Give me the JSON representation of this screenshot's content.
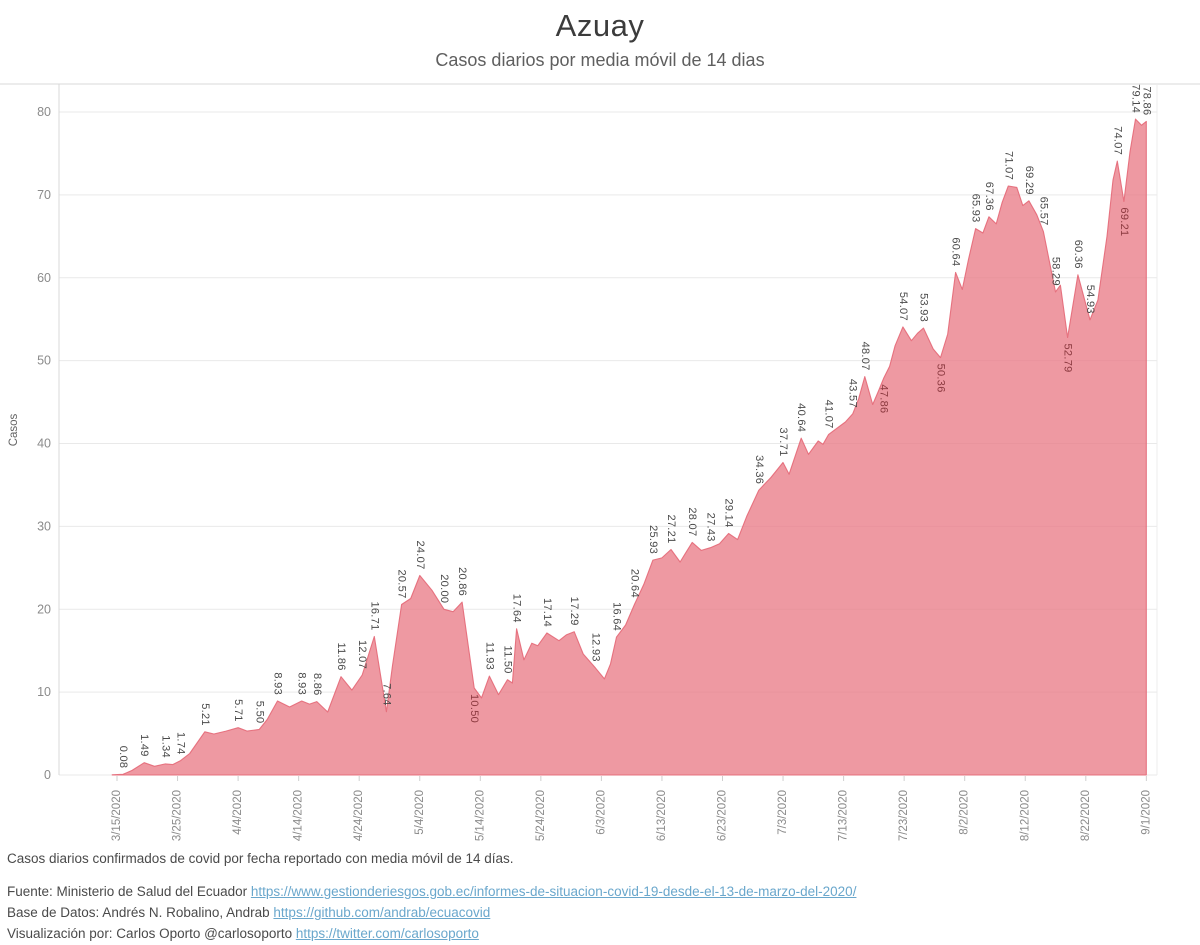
{
  "header": {
    "title": "Azuay",
    "subtitle": "Casos diarios por media móvil de 14 dias"
  },
  "chart_data": {
    "type": "area",
    "title": "Azuay",
    "subtitle": "Casos diarios por media móvil de 14 dias",
    "ylabel": "Casos",
    "xlabel": "",
    "ylim": [
      0,
      83.3
    ],
    "y_ticks": [
      0,
      10,
      20,
      30,
      40,
      50,
      60,
      70,
      80
    ],
    "x_tick_dates": [
      "3/15/2020",
      "3/25/2020",
      "4/4/2020",
      "4/14/2020",
      "4/24/2020",
      "5/4/2020",
      "5/14/2020",
      "5/24/2020",
      "6/3/2020",
      "6/13/2020",
      "6/23/2020",
      "7/3/2020",
      "7/13/2020",
      "7/23/2020",
      "8/2/2020",
      "8/12/2020",
      "8/22/2020",
      "9/1/2020"
    ],
    "x_tick_days": [
      0,
      10,
      20,
      30,
      40,
      50,
      60,
      70,
      80,
      90,
      100,
      110,
      120,
      130,
      140,
      150,
      160,
      170
    ],
    "grid": true,
    "legend": "none",
    "series_name": "Casos diarios por media móvil de 14 dias",
    "points": [
      [
        -0.8,
        0.03
      ],
      [
        1,
        0.08,
        "0.08"
      ],
      [
        2.5,
        0.55
      ],
      [
        4.5,
        1.49,
        "1.49"
      ],
      [
        6.2,
        1.05
      ],
      [
        8,
        1.34,
        "1.34"
      ],
      [
        9.2,
        1.25
      ],
      [
        10.5,
        1.74,
        "1.74"
      ],
      [
        12,
        2.6
      ],
      [
        14.5,
        5.21,
        "5.21"
      ],
      [
        16,
        4.95
      ],
      [
        18,
        5.3
      ],
      [
        20,
        5.71,
        "5.71"
      ],
      [
        21.5,
        5.3
      ],
      [
        23.5,
        5.5,
        "5.50"
      ],
      [
        24.8,
        6.7
      ],
      [
        26.5,
        8.93,
        "8.93"
      ],
      [
        28.5,
        8.2
      ],
      [
        30.5,
        8.93,
        "8.93"
      ],
      [
        31.8,
        8.55
      ],
      [
        33,
        8.86,
        "8.86"
      ],
      [
        34.8,
        7.6
      ],
      [
        37,
        11.86,
        "11.86"
      ],
      [
        38.8,
        10.25
      ],
      [
        40.5,
        12.07,
        "12.07"
      ],
      [
        42.5,
        16.71,
        "16.71"
      ],
      [
        44.5,
        7.64,
        "7.64"
      ],
      [
        45.5,
        13.2
      ],
      [
        47,
        20.57,
        "20.57"
      ],
      [
        48.5,
        21.3
      ],
      [
        50,
        24.07,
        "24.07"
      ],
      [
        52,
        22.3
      ],
      [
        54,
        20.0,
        "20.00"
      ],
      [
        55.5,
        19.7
      ],
      [
        57,
        20.86,
        "20.86"
      ],
      [
        59,
        10.5,
        "10.50",
        1
      ],
      [
        60.2,
        9.3
      ],
      [
        61.5,
        11.93,
        "11.93"
      ],
      [
        63,
        9.7
      ],
      [
        64.5,
        11.5,
        "11.50"
      ],
      [
        65.3,
        11.1
      ],
      [
        66,
        17.64,
        "17.64"
      ],
      [
        67.2,
        13.9
      ],
      [
        68.5,
        15.9
      ],
      [
        69.5,
        15.6
      ],
      [
        71,
        17.14,
        "17.14"
      ],
      [
        73,
        16.2
      ],
      [
        74.2,
        16.9
      ],
      [
        75.5,
        17.29,
        "17.29"
      ],
      [
        77,
        14.6
      ],
      [
        79,
        12.93,
        "12.93"
      ],
      [
        80.5,
        11.6
      ],
      [
        81.5,
        13.4
      ],
      [
        82.5,
        16.64,
        "16.64"
      ],
      [
        84,
        18.1
      ],
      [
        85.5,
        20.64,
        "20.64"
      ],
      [
        87,
        23.0
      ],
      [
        88.5,
        25.93,
        "25.93"
      ],
      [
        90,
        26.2
      ],
      [
        91.5,
        27.21,
        "27.21"
      ],
      [
        93,
        25.7
      ],
      [
        94,
        26.9
      ],
      [
        95,
        28.07,
        "28.07"
      ],
      [
        96.5,
        27.1
      ],
      [
        98,
        27.43,
        "27.43"
      ],
      [
        99.5,
        27.9
      ],
      [
        101,
        29.14,
        "29.14"
      ],
      [
        102.5,
        28.4
      ],
      [
        104,
        31.2
      ],
      [
        106,
        34.36,
        "34.36"
      ],
      [
        108,
        35.9
      ],
      [
        110,
        37.71,
        "37.71"
      ],
      [
        111,
        36.3
      ],
      [
        113,
        40.64,
        "40.64"
      ],
      [
        114.2,
        38.7
      ],
      [
        115.8,
        40.3
      ],
      [
        116.6,
        39.9
      ],
      [
        117.5,
        41.07,
        "41.07"
      ],
      [
        119,
        41.9
      ],
      [
        120.3,
        42.6
      ],
      [
        121.5,
        43.57,
        "43.57"
      ],
      [
        122.5,
        45.4
      ],
      [
        123.5,
        48.07,
        "48.07"
      ],
      [
        124.8,
        44.7
      ],
      [
        125.8,
        46.4
      ],
      [
        126.6,
        47.86,
        "47.86",
        1
      ],
      [
        127.6,
        49.3
      ],
      [
        128.5,
        51.8
      ],
      [
        129.8,
        54.07,
        "54.07"
      ],
      [
        131.2,
        52.4
      ],
      [
        132.2,
        53.3
      ],
      [
        133.2,
        53.93,
        "53.93"
      ],
      [
        134.8,
        51.4
      ],
      [
        136,
        50.36,
        "50.36",
        1
      ],
      [
        137.2,
        53.2
      ],
      [
        138.5,
        60.64,
        "60.64"
      ],
      [
        139.6,
        58.6
      ],
      [
        140.6,
        62.1
      ],
      [
        141.8,
        65.93,
        "65.93"
      ],
      [
        143,
        65.4
      ],
      [
        144,
        67.36,
        "67.36"
      ],
      [
        145.2,
        66.5
      ],
      [
        146.2,
        69.1
      ],
      [
        147.2,
        71.07,
        "71.07"
      ],
      [
        148.6,
        70.9
      ],
      [
        149.6,
        68.7
      ],
      [
        150.6,
        69.29,
        "69.29"
      ],
      [
        151.9,
        67.6
      ],
      [
        153,
        65.57,
        "65.57"
      ],
      [
        155,
        58.29,
        "58.29"
      ],
      [
        155.8,
        59.1
      ],
      [
        157,
        52.79,
        "52.79",
        1
      ],
      [
        158.7,
        60.36,
        "60.36"
      ],
      [
        160.7,
        54.93,
        "54.93"
      ],
      [
        162,
        57.3
      ],
      [
        163.5,
        65.0
      ],
      [
        164.5,
        71.8
      ],
      [
        165.2,
        74.07,
        "74.07"
      ],
      [
        166.3,
        69.21,
        "69.21",
        1
      ],
      [
        167.3,
        75.2
      ],
      [
        168.2,
        79.14,
        "79.14"
      ],
      [
        169.2,
        78.4
      ],
      [
        170,
        78.86,
        "78.86"
      ]
    ],
    "colors": {
      "area_fill": "rgba(233,124,136,0.78)",
      "area_edge": "rgba(228,104,119,0.9)",
      "gridline": "#e9e9e9",
      "axis_line": "#d9d9d9",
      "tick_text": "#8b8b8b",
      "value_label": "#4a4a4a",
      "value_label_inside": "#8c3a40",
      "ylabel_text": "#636363"
    }
  },
  "footer": {
    "caption": "Casos diarios confirmados de covid por fecha reportado con media móvil de 14 días.",
    "source_prefix": "Fuente: Ministerio de Salud del Ecuador ",
    "source_url": "https://www.gestionderiesgos.gob.ec/informes-de-situacion-covid-19-desde-el-13-de-marzo-del-2020/",
    "database_prefix": "Base de Datos: Andrés N. Robalino, Andrab ",
    "database_url": "https://github.com/andrab/ecuacovid",
    "viz_prefix": "Visualización por: Carlos Oporto @carlosoporto ",
    "viz_url": "https://twitter.com/carlosoporto"
  }
}
